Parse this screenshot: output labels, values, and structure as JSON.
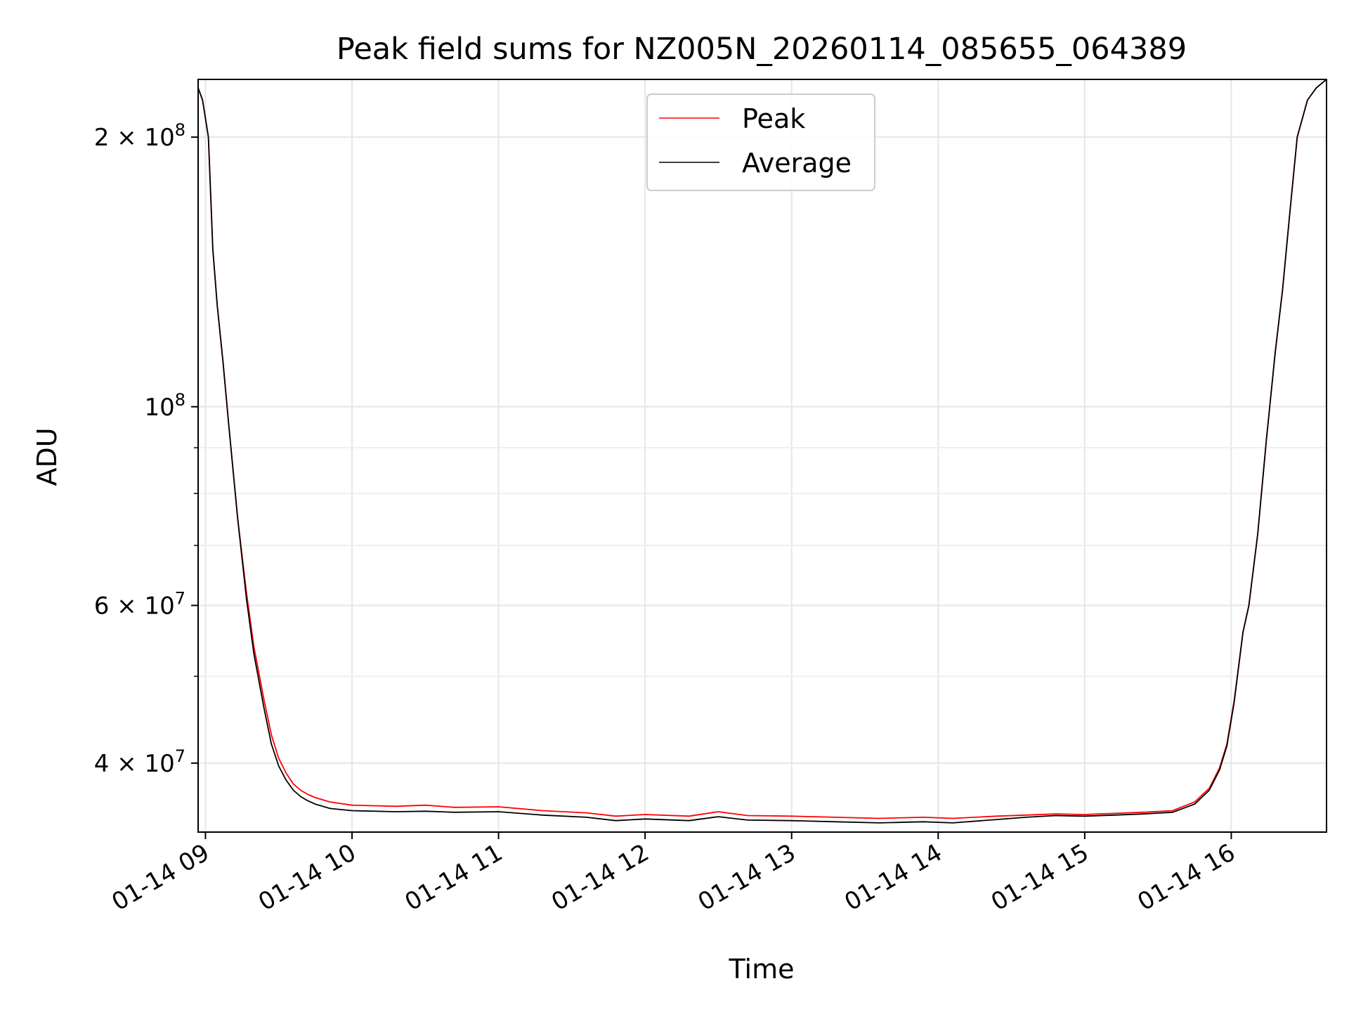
{
  "chart_data": {
    "type": "line",
    "title": "Peak field sums for NZ005N_20260114_085655_064389",
    "xlabel": "Time",
    "ylabel": "ADU",
    "yscale": "log",
    "xlim_hours": [
      8.95,
      16.65
    ],
    "ylim": [
      33500000,
      232000000
    ],
    "x_tick_values": [
      9,
      10,
      11,
      12,
      13,
      14,
      15,
      16
    ],
    "x_tick_labels": [
      "01-14 09",
      "01-14 10",
      "01-14 11",
      "01-14 12",
      "01-14 13",
      "01-14 14",
      "01-14 15",
      "01-14 16"
    ],
    "y_major_ticks": [
      {
        "value": 200000000,
        "mantissa": "2",
        "exponent": "8"
      },
      {
        "value": 100000000,
        "mantissa": "",
        "exponent": "8"
      },
      {
        "value": 60000000,
        "mantissa": "6",
        "exponent": "7"
      },
      {
        "value": 40000000,
        "mantissa": "4",
        "exponent": "7"
      }
    ],
    "y_minor_ticks": [
      90000000,
      80000000,
      70000000,
      50000000,
      30000000
    ],
    "legend": {
      "position": "top-center",
      "entries": [
        "Peak",
        "Average"
      ]
    },
    "series": [
      {
        "name": "Peak",
        "color": "#ff0000",
        "x_hours": [
          8.95,
          8.98,
          9.02,
          9.05,
          9.08,
          9.12,
          9.16,
          9.22,
          9.28,
          9.33,
          9.4,
          9.45,
          9.5,
          9.55,
          9.6,
          9.65,
          9.7,
          9.75,
          9.85,
          10.0,
          10.3,
          10.5,
          10.7,
          11.0,
          11.3,
          11.6,
          11.8,
          12.0,
          12.3,
          12.5,
          12.7,
          13.0,
          13.3,
          13.6,
          13.9,
          14.1,
          14.4,
          14.6,
          14.8,
          15.0,
          15.2,
          15.4,
          15.6,
          15.75,
          15.85,
          15.92,
          15.97,
          16.02,
          16.08,
          16.12,
          16.18,
          16.24,
          16.3,
          16.35,
          16.4,
          16.45,
          16.52,
          16.58,
          16.65
        ],
        "values": [
          227000000,
          220000000,
          200000000,
          150000000,
          130000000,
          112000000,
          95000000,
          75000000,
          62000000,
          54000000,
          47000000,
          43000000,
          40500000,
          39000000,
          37900000,
          37300000,
          36900000,
          36600000,
          36200000,
          35900000,
          35800000,
          35900000,
          35700000,
          35750000,
          35400000,
          35200000,
          34900000,
          35050000,
          34900000,
          35300000,
          34950000,
          34900000,
          34800000,
          34700000,
          34800000,
          34700000,
          34900000,
          35000000,
          35100000,
          35050000,
          35150000,
          35250000,
          35400000,
          36200000,
          37500000,
          39500000,
          42000000,
          47000000,
          56000000,
          60000000,
          72000000,
          92000000,
          115000000,
          135000000,
          165000000,
          200000000,
          220000000,
          227000000,
          232000000
        ]
      },
      {
        "name": "Average",
        "color": "#000000",
        "x_hours": [
          8.95,
          8.98,
          9.02,
          9.05,
          9.08,
          9.12,
          9.16,
          9.22,
          9.28,
          9.33,
          9.4,
          9.45,
          9.5,
          9.55,
          9.6,
          9.65,
          9.7,
          9.75,
          9.85,
          10.0,
          10.3,
          10.5,
          10.7,
          11.0,
          11.3,
          11.6,
          11.8,
          12.0,
          12.3,
          12.5,
          12.7,
          13.0,
          13.3,
          13.6,
          13.9,
          14.1,
          14.4,
          14.6,
          14.8,
          15.0,
          15.2,
          15.4,
          15.6,
          15.75,
          15.85,
          15.92,
          15.97,
          16.02,
          16.08,
          16.12,
          16.18,
          16.24,
          16.3,
          16.35,
          16.4,
          16.45,
          16.52,
          16.58,
          16.65
        ],
        "values": [
          227000000,
          220000000,
          200000000,
          150000000,
          130000000,
          112000000,
          95000000,
          75000000,
          61000000,
          53000000,
          46000000,
          42000000,
          39700000,
          38300000,
          37300000,
          36700000,
          36300000,
          36000000,
          35600000,
          35400000,
          35300000,
          35350000,
          35250000,
          35300000,
          35000000,
          34800000,
          34500000,
          34650000,
          34500000,
          34850000,
          34550000,
          34500000,
          34400000,
          34300000,
          34400000,
          34300000,
          34600000,
          34800000,
          34950000,
          34900000,
          35000000,
          35100000,
          35250000,
          36000000,
          37300000,
          39300000,
          41800000,
          46800000,
          56000000,
          60000000,
          72000000,
          92000000,
          115000000,
          135000000,
          165000000,
          200000000,
          220000000,
          227000000,
          232000000
        ]
      }
    ]
  }
}
